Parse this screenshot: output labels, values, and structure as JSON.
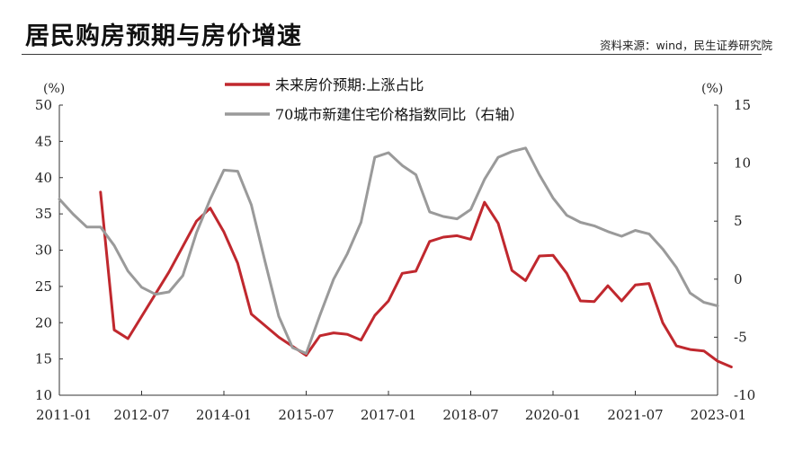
{
  "title": "居民购房预期与房价增速",
  "source": "资料来源：wind，民生证券研究院",
  "chart_data": {
    "type": "line",
    "left_unit": "(%)",
    "right_unit": "(%)",
    "ylim_left": [
      10,
      50
    ],
    "ylim_right": [
      -10,
      15
    ],
    "yticks_left": [
      10,
      15,
      20,
      25,
      30,
      35,
      40,
      45,
      50
    ],
    "yticks_right": [
      -10,
      -5,
      0,
      5,
      10,
      15
    ],
    "xlim": [
      "2011-01",
      "2023-01"
    ],
    "xtick_labels": [
      "2011-01",
      "2012-07",
      "2014-01",
      "2015-07",
      "2017-01",
      "2018-07",
      "2020-01",
      "2021-07",
      "2023-01"
    ],
    "colors": {
      "red": "#c0282e",
      "gray": "#9a9a9a"
    },
    "series": [
      {
        "name": "未来房价预期:上涨占比",
        "axis": "left",
        "color": "#c0282e",
        "points": [
          [
            "2011-10",
            38.0
          ],
          [
            "2012-01",
            19.0
          ],
          [
            "2012-04",
            17.8
          ],
          [
            "2013-01",
            27.0
          ],
          [
            "2013-07",
            34.0
          ],
          [
            "2013-10",
            35.8
          ],
          [
            "2014-01",
            32.5
          ],
          [
            "2014-04",
            28.2
          ],
          [
            "2014-07",
            21.2
          ],
          [
            "2015-01",
            18.0
          ],
          [
            "2015-07",
            15.5
          ],
          [
            "2015-10",
            18.2
          ],
          [
            "2016-01",
            18.6
          ],
          [
            "2016-04",
            18.4
          ],
          [
            "2016-07",
            17.6
          ],
          [
            "2016-10",
            21.0
          ],
          [
            "2017-01",
            23.0
          ],
          [
            "2017-04",
            26.8
          ],
          [
            "2017-07",
            27.1
          ],
          [
            "2017-10",
            31.2
          ],
          [
            "2018-01",
            31.8
          ],
          [
            "2018-04",
            32.0
          ],
          [
            "2018-07",
            31.5
          ],
          [
            "2018-10",
            36.6
          ],
          [
            "2019-01",
            33.7
          ],
          [
            "2019-04",
            27.2
          ],
          [
            "2019-07",
            25.8
          ],
          [
            "2019-10",
            29.2
          ],
          [
            "2020-01",
            29.3
          ],
          [
            "2020-04",
            26.8
          ],
          [
            "2020-07",
            23.0
          ],
          [
            "2020-10",
            22.9
          ],
          [
            "2021-01",
            25.1
          ],
          [
            "2021-04",
            23.0
          ],
          [
            "2021-07",
            25.2
          ],
          [
            "2021-10",
            25.4
          ],
          [
            "2022-01",
            20.0
          ],
          [
            "2022-04",
            16.8
          ],
          [
            "2022-07",
            16.3
          ],
          [
            "2022-10",
            16.1
          ],
          [
            "2023-01",
            14.7
          ],
          [
            "2023-04",
            13.9
          ]
        ]
      },
      {
        "name": "70城市新建住宅价格指数同比（右轴）",
        "axis": "right",
        "color": "#9a9a9a",
        "points": [
          [
            "2011-01",
            6.9
          ],
          [
            "2011-04",
            5.6
          ],
          [
            "2011-07",
            4.5
          ],
          [
            "2011-10",
            4.5
          ],
          [
            "2012-01",
            2.9
          ],
          [
            "2012-04",
            0.7
          ],
          [
            "2012-07",
            -0.7
          ],
          [
            "2012-10",
            -1.3
          ],
          [
            "2013-01",
            -1.1
          ],
          [
            "2013-04",
            0.3
          ],
          [
            "2013-07",
            4.0
          ],
          [
            "2013-10",
            6.9
          ],
          [
            "2014-01",
            9.4
          ],
          [
            "2014-04",
            9.3
          ],
          [
            "2014-07",
            6.4
          ],
          [
            "2014-10",
            1.5
          ],
          [
            "2015-01",
            -3.2
          ],
          [
            "2015-04",
            -5.9
          ],
          [
            "2015-07",
            -6.4
          ],
          [
            "2015-10",
            -3.1
          ],
          [
            "2016-01",
            0.0
          ],
          [
            "2016-04",
            2.2
          ],
          [
            "2016-07",
            4.9
          ],
          [
            "2016-10",
            10.5
          ],
          [
            "2017-01",
            10.9
          ],
          [
            "2017-04",
            9.8
          ],
          [
            "2017-07",
            9.0
          ],
          [
            "2017-10",
            5.8
          ],
          [
            "2018-01",
            5.4
          ],
          [
            "2018-04",
            5.2
          ],
          [
            "2018-07",
            6.0
          ],
          [
            "2018-10",
            8.6
          ],
          [
            "2019-01",
            10.5
          ],
          [
            "2019-04",
            11.0
          ],
          [
            "2019-07",
            11.3
          ],
          [
            "2019-10",
            9.0
          ],
          [
            "2020-01",
            7.0
          ],
          [
            "2020-04",
            5.5
          ],
          [
            "2020-07",
            4.9
          ],
          [
            "2020-10",
            4.6
          ],
          [
            "2021-01",
            4.1
          ],
          [
            "2021-04",
            3.7
          ],
          [
            "2021-07",
            4.2
          ],
          [
            "2021-10",
            3.9
          ],
          [
            "2022-01",
            2.6
          ],
          [
            "2022-04",
            1.0
          ],
          [
            "2022-07",
            -1.2
          ],
          [
            "2022-10",
            -2.0
          ],
          [
            "2023-01",
            -2.3
          ]
        ]
      }
    ]
  }
}
